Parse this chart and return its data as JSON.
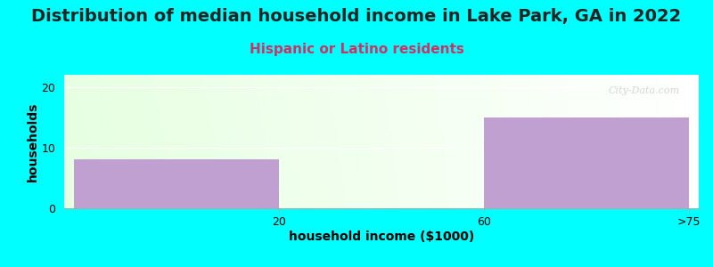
{
  "title": "Distribution of median household income in Lake Park, GA in 2022",
  "subtitle": "Hispanic or Latino residents",
  "subtitle_color": "#cc3366",
  "background_color": "#00ffff",
  "bar_color": "#c0a0d0",
  "bar_edge_color": "#b090c0",
  "categories": [
    "20",
    "60",
    ">75"
  ],
  "values": [
    8,
    0,
    15
  ],
  "ylabel": "households",
  "xlabel": "household income ($1000)",
  "ylim": [
    0,
    22
  ],
  "yticks": [
    0,
    10,
    20
  ],
  "title_fontsize": 14,
  "subtitle_fontsize": 11,
  "axis_label_fontsize": 10,
  "tick_fontsize": 9,
  "watermark": "City-Data.com"
}
